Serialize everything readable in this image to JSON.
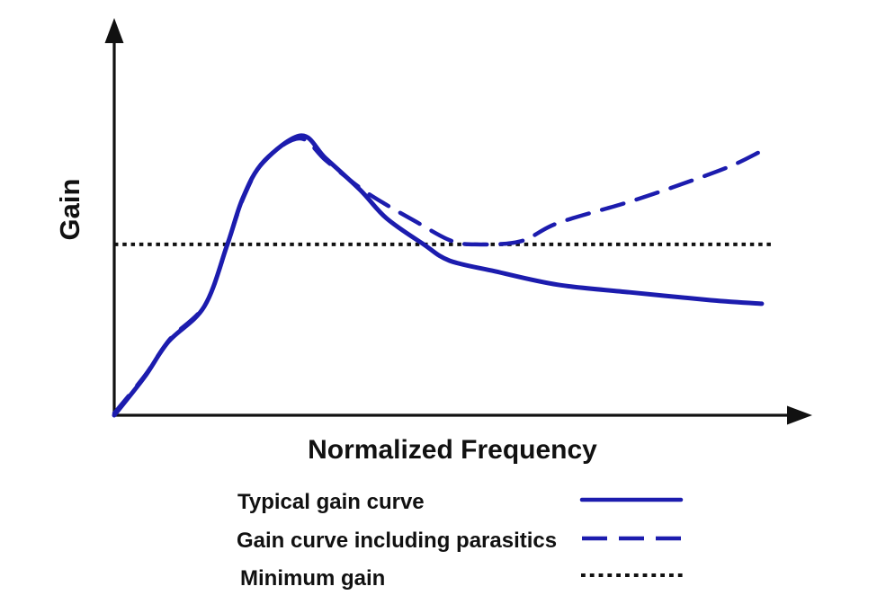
{
  "figure": {
    "background": "#ffffff"
  },
  "colors": {
    "curve_blue": "#1c1cae",
    "ink_black": "#111111"
  },
  "chart_data": {
    "type": "line",
    "title": "",
    "xlabel": "Normalized Frequency",
    "ylabel": "Gain",
    "xlim": [
      0,
      1
    ],
    "ylim": [
      0,
      1
    ],
    "grid": false,
    "ticks": "none (unlabeled normalized axes with arrowheads)",
    "legend_position": "below x-axis, left-aligned labels with line samples at right",
    "series": [
      {
        "id": "typical",
        "name": "Typical gain curve",
        "line_style": "solid",
        "color": "#1c1cae",
        "points": [
          [
            0.0,
            0.0
          ],
          [
            0.044,
            0.095
          ],
          [
            0.08,
            0.186
          ],
          [
            0.133,
            0.275
          ],
          [
            0.167,
            0.432
          ],
          [
            0.19,
            0.55
          ],
          [
            0.22,
            0.64
          ],
          [
            0.276,
            0.707
          ],
          [
            0.312,
            0.65
          ],
          [
            0.363,
            0.57
          ],
          [
            0.402,
            0.498
          ],
          [
            0.457,
            0.432
          ],
          [
            0.495,
            0.391
          ],
          [
            0.562,
            0.364
          ],
          [
            0.655,
            0.33
          ],
          [
            0.761,
            0.311
          ],
          [
            0.881,
            0.291
          ],
          [
            0.956,
            0.282
          ]
        ]
      },
      {
        "id": "parasitics",
        "name": "Gain curve including parasitics",
        "line_style": "dashed",
        "color": "#1c1cae",
        "points": [
          [
            0.0,
            0.005
          ],
          [
            0.045,
            0.1
          ],
          [
            0.082,
            0.192
          ],
          [
            0.135,
            0.282
          ],
          [
            0.168,
            0.438
          ],
          [
            0.192,
            0.555
          ],
          [
            0.222,
            0.645
          ],
          [
            0.274,
            0.7
          ],
          [
            0.312,
            0.645
          ],
          [
            0.363,
            0.575
          ],
          [
            0.402,
            0.532
          ],
          [
            0.442,
            0.493
          ],
          [
            0.495,
            0.443
          ],
          [
            0.533,
            0.432
          ],
          [
            0.6,
            0.44
          ],
          [
            0.655,
            0.486
          ],
          [
            0.761,
            0.54
          ],
          [
            0.847,
            0.59
          ],
          [
            0.91,
            0.63
          ],
          [
            0.951,
            0.664
          ]
        ]
      },
      {
        "id": "min_gain",
        "name": "Minimum gain",
        "line_style": "dotted",
        "color": "#111111",
        "points": [
          [
            0.0,
            0.432
          ],
          [
            0.97,
            0.432
          ]
        ]
      }
    ]
  },
  "legend": {
    "items": [
      {
        "label": "Typical gain curve",
        "swatch": "solid-blue-line"
      },
      {
        "label": "Gain curve including parasitics",
        "swatch": "dashed-blue-line"
      },
      {
        "label": "Minimum gain",
        "swatch": "dotted-black-line"
      }
    ]
  }
}
